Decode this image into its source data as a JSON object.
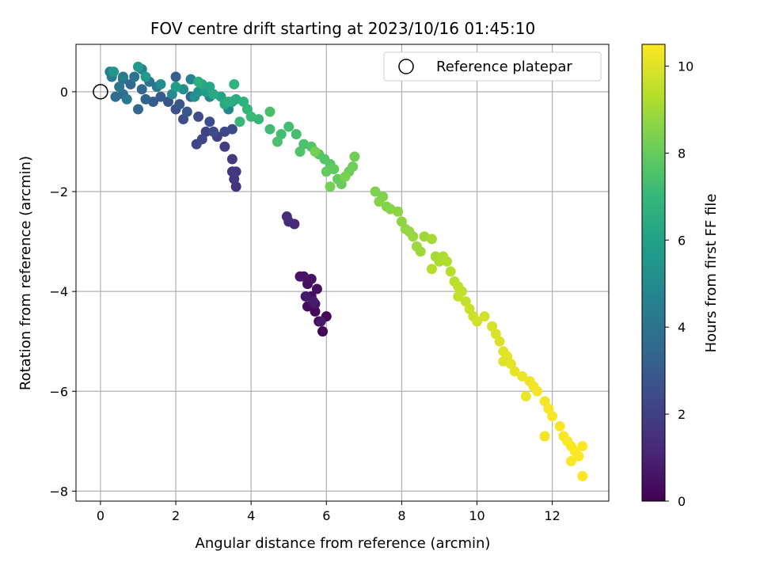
{
  "chart_data": {
    "type": "scatter",
    "title": "FOV centre drift starting at 2023/10/16 01:45:10",
    "xlabel": "Angular distance from reference (arcmin)",
    "ylabel": "Rotation from reference (arcmin)",
    "xlim": [
      -0.65,
      13.5
    ],
    "ylim": [
      -8.2,
      0.95
    ],
    "xticks": [
      0,
      2,
      4,
      6,
      8,
      10,
      12
    ],
    "yticks": [
      0,
      -2,
      -4,
      -6,
      -8
    ],
    "xtick_labels": [
      "0",
      "2",
      "4",
      "6",
      "8",
      "10",
      "12"
    ],
    "ytick_labels": [
      "0",
      "−2",
      "−4",
      "−6",
      "−8"
    ],
    "grid": true,
    "legend": {
      "position": "top-right",
      "label": "Reference platepar",
      "marker": "open-circle"
    },
    "reference_point": {
      "x": 0,
      "y": 0
    },
    "colorbar": {
      "label": "Hours from first FF file",
      "colormap": "viridis",
      "range": [
        0,
        10.5
      ],
      "ticks": [
        0,
        2,
        4,
        6,
        8,
        10
      ],
      "tick_labels": [
        "0",
        "2",
        "4",
        "6",
        "8",
        "10"
      ]
    },
    "series": [
      {
        "points": [
          [
            5.9,
            -4.8,
            0.1
          ],
          [
            5.8,
            -4.6,
            0.15
          ],
          [
            6.0,
            -4.5,
            0.2
          ],
          [
            5.7,
            -4.4,
            0.25
          ],
          [
            5.5,
            -4.3,
            0.3
          ],
          [
            5.6,
            -4.1,
            0.35
          ],
          [
            5.75,
            -3.95,
            0.4
          ],
          [
            5.5,
            -3.85,
            0.45
          ],
          [
            5.6,
            -3.75,
            0.5
          ],
          [
            5.4,
            -3.7,
            0.55
          ],
          [
            5.3,
            -3.7,
            0.6
          ],
          [
            5.7,
            -4.25,
            0.65
          ],
          [
            5.45,
            -4.1,
            0.7
          ],
          [
            5.85,
            -4.6,
            0.75
          ],
          [
            5.65,
            -4.2,
            0.8
          ],
          [
            5.15,
            -2.65,
            1.2
          ],
          [
            4.95,
            -2.5,
            1.3
          ],
          [
            5.0,
            -2.6,
            1.35
          ],
          [
            3.6,
            -1.9,
            1.6
          ],
          [
            3.55,
            -1.75,
            1.65
          ],
          [
            3.5,
            -1.6,
            1.7
          ],
          [
            3.6,
            -1.6,
            1.75
          ],
          [
            3.5,
            -1.35,
            1.8
          ],
          [
            3.3,
            -1.1,
            1.9
          ],
          [
            3.1,
            -0.9,
            2.0
          ],
          [
            2.8,
            -0.8,
            2.1
          ],
          [
            2.55,
            -1.05,
            2.2
          ],
          [
            2.7,
            -0.95,
            2.25
          ],
          [
            3.3,
            -0.8,
            2.3
          ],
          [
            3.5,
            -0.75,
            2.35
          ],
          [
            3.0,
            -0.8,
            2.4
          ],
          [
            2.9,
            -0.6,
            2.45
          ],
          [
            2.6,
            -0.5,
            2.5
          ],
          [
            2.2,
            -0.55,
            2.55
          ],
          [
            2.0,
            -0.35,
            2.6
          ],
          [
            1.8,
            -0.2,
            2.7
          ],
          [
            2.1,
            -0.25,
            2.8
          ],
          [
            2.3,
            -0.4,
            2.9
          ],
          [
            1.6,
            -0.1,
            3.0
          ],
          [
            1.4,
            -0.2,
            3.1
          ],
          [
            2.0,
            0.3,
            3.2
          ],
          [
            2.4,
            -0.1,
            3.3
          ],
          [
            1.2,
            -0.15,
            3.4
          ],
          [
            1.0,
            -0.35,
            3.5
          ],
          [
            1.1,
            0.05,
            3.55
          ],
          [
            0.8,
            0.15,
            3.6
          ],
          [
            0.6,
            -0.05,
            3.7
          ],
          [
            0.4,
            -0.1,
            3.75
          ],
          [
            0.6,
            0.25,
            3.8
          ],
          [
            1.3,
            0.2,
            3.9
          ],
          [
            0.9,
            0.3,
            4.0
          ],
          [
            1.5,
            0.1,
            4.1
          ],
          [
            0.5,
            0.1,
            4.2
          ],
          [
            0.7,
            -0.15,
            4.3
          ],
          [
            0.6,
            0.3,
            4.35
          ],
          [
            0.3,
            0.3,
            4.4
          ],
          [
            0.25,
            0.4,
            4.5
          ],
          [
            1.1,
            0.45,
            4.6
          ],
          [
            2.4,
            0.25,
            4.7
          ],
          [
            2.9,
            -0.1,
            4.8
          ],
          [
            3.4,
            -0.35,
            4.9
          ],
          [
            1.9,
            -0.05,
            5.0
          ],
          [
            1.6,
            0.15,
            5.1
          ],
          [
            2.2,
            0.05,
            5.2
          ],
          [
            2.5,
            -0.1,
            5.3
          ],
          [
            2.6,
            0.0,
            5.4
          ],
          [
            0.35,
            0.4,
            5.5
          ],
          [
            1.0,
            0.5,
            5.6
          ],
          [
            1.2,
            0.3,
            5.7
          ],
          [
            2.0,
            0.1,
            5.8
          ],
          [
            2.8,
            0.0,
            5.9
          ],
          [
            3.2,
            -0.1,
            6.0
          ],
          [
            3.5,
            -0.2,
            6.1
          ],
          [
            2.9,
            0.1,
            6.2
          ],
          [
            2.7,
            0.15,
            6.3
          ],
          [
            3.3,
            -0.25,
            6.35
          ],
          [
            3.0,
            -0.05,
            6.4
          ],
          [
            3.6,
            -0.15,
            6.5
          ],
          [
            3.4,
            -0.2,
            6.55
          ],
          [
            2.6,
            0.2,
            6.6
          ],
          [
            3.8,
            -0.2,
            6.7
          ],
          [
            3.55,
            0.15,
            6.8
          ],
          [
            3.9,
            -0.35,
            6.9
          ],
          [
            4.2,
            -0.55,
            7.0
          ],
          [
            3.7,
            -0.6,
            7.05
          ],
          [
            4.0,
            -0.5,
            7.1
          ],
          [
            4.5,
            -0.75,
            7.2
          ],
          [
            4.8,
            -0.85,
            7.25
          ],
          [
            5.0,
            -0.7,
            7.3
          ],
          [
            5.2,
            -0.85,
            7.35
          ],
          [
            4.5,
            -0.4,
            7.4
          ],
          [
            4.7,
            -1.0,
            7.45
          ],
          [
            5.4,
            -1.05,
            7.5
          ],
          [
            5.3,
            -1.2,
            7.55
          ],
          [
            5.6,
            -1.1,
            7.6
          ],
          [
            5.8,
            -1.25,
            7.65
          ],
          [
            5.95,
            -1.35,
            7.7
          ],
          [
            6.1,
            -1.45,
            7.8
          ],
          [
            6.2,
            -1.55,
            7.9
          ],
          [
            6.0,
            -1.6,
            7.95
          ],
          [
            6.3,
            -1.75,
            8.0
          ],
          [
            6.4,
            -1.85,
            8.05
          ],
          [
            6.6,
            -1.6,
            8.1
          ],
          [
            6.7,
            -1.5,
            8.15
          ],
          [
            6.75,
            -1.3,
            8.2
          ],
          [
            5.7,
            -1.2,
            8.25
          ],
          [
            6.1,
            -1.9,
            8.3
          ],
          [
            6.5,
            -1.7,
            8.35
          ],
          [
            7.3,
            -2.0,
            8.4
          ],
          [
            7.5,
            -2.1,
            8.45
          ],
          [
            7.6,
            -2.3,
            8.5
          ],
          [
            7.4,
            -2.2,
            8.55
          ],
          [
            7.7,
            -2.35,
            8.6
          ],
          [
            7.9,
            -2.4,
            8.65
          ],
          [
            8.0,
            -2.6,
            8.7
          ],
          [
            8.1,
            -2.75,
            8.75
          ],
          [
            8.2,
            -2.8,
            8.8
          ],
          [
            8.3,
            -2.9,
            8.85
          ],
          [
            8.4,
            -3.1,
            8.9
          ],
          [
            8.5,
            -3.2,
            8.95
          ],
          [
            8.6,
            -2.9,
            9.0
          ],
          [
            8.8,
            -2.95,
            9.05
          ],
          [
            8.9,
            -3.3,
            9.1
          ],
          [
            9.0,
            -3.4,
            9.15
          ],
          [
            9.1,
            -3.3,
            9.2
          ],
          [
            9.2,
            -3.4,
            9.25
          ],
          [
            8.8,
            -3.55,
            9.3
          ],
          [
            9.3,
            -3.6,
            9.35
          ],
          [
            9.4,
            -3.8,
            9.4
          ],
          [
            9.5,
            -3.9,
            9.45
          ],
          [
            9.6,
            -4.0,
            9.5
          ],
          [
            9.5,
            -4.1,
            9.55
          ],
          [
            9.7,
            -4.2,
            9.6
          ],
          [
            9.8,
            -4.35,
            9.65
          ],
          [
            9.9,
            -4.5,
            9.7
          ],
          [
            10.0,
            -4.6,
            9.75
          ],
          [
            10.2,
            -4.5,
            9.8
          ],
          [
            10.4,
            -4.7,
            9.85
          ],
          [
            10.5,
            -4.85,
            9.9
          ],
          [
            10.6,
            -5.0,
            9.95
          ],
          [
            10.7,
            -5.2,
            10.0
          ],
          [
            10.8,
            -5.3,
            10.05
          ],
          [
            10.9,
            -5.45,
            10.1
          ],
          [
            11.0,
            -5.6,
            10.15
          ],
          [
            11.2,
            -5.7,
            10.2
          ],
          [
            11.4,
            -5.8,
            10.25
          ],
          [
            11.5,
            -5.9,
            10.3
          ],
          [
            11.6,
            -6.0,
            10.32
          ],
          [
            11.8,
            -6.2,
            10.35
          ],
          [
            11.9,
            -6.35,
            10.38
          ],
          [
            12.0,
            -6.5,
            10.4
          ],
          [
            12.2,
            -6.7,
            10.42
          ],
          [
            12.3,
            -6.9,
            10.44
          ],
          [
            12.4,
            -7.0,
            10.46
          ],
          [
            12.5,
            -7.1,
            10.48
          ],
          [
            12.6,
            -7.2,
            10.5
          ],
          [
            12.7,
            -7.3,
            10.5
          ],
          [
            12.8,
            -7.1,
            10.5
          ],
          [
            12.8,
            -7.7,
            10.5
          ],
          [
            12.5,
            -7.4,
            10.45
          ],
          [
            11.8,
            -6.9,
            10.3
          ],
          [
            11.3,
            -6.1,
            10.2
          ],
          [
            10.7,
            -5.4,
            10.0
          ]
        ]
      }
    ],
    "colors": {
      "grid": "#b0b0b0",
      "axes": "#000000",
      "colormap_stops": [
        "#440154",
        "#482878",
        "#3e4989",
        "#31688e",
        "#26828e",
        "#1f9e89",
        "#35b779",
        "#6ece58",
        "#b5de2b",
        "#fde725"
      ]
    }
  }
}
